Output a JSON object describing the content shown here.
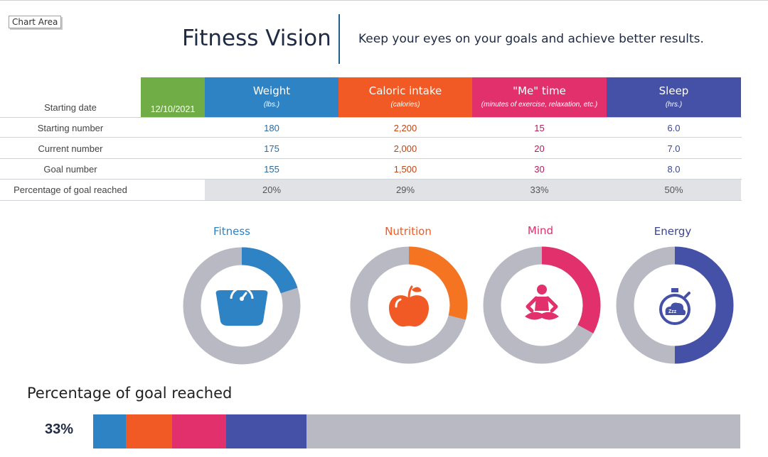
{
  "chart_area_label": "Chart Area",
  "title": "Fitness Vision",
  "subtitle": "Keep your eyes on your goals and achieve better results.",
  "table": {
    "starting_date_label": "Starting date",
    "starting_date": "12/10/2021",
    "columns": [
      {
        "name": "Weight",
        "unit": "(lbs.)",
        "color": "#2e83c4"
      },
      {
        "name": "Caloric intake",
        "unit": "(calories)",
        "color": "#f15a24"
      },
      {
        "name": "\"Me\" time",
        "unit": "(minutes of exercise, relaxation, etc.)",
        "color": "#e1306c"
      },
      {
        "name": "Sleep",
        "unit": "(hrs.)",
        "color": "#4451a6"
      }
    ],
    "rows": [
      {
        "label": "Starting number",
        "values": [
          "180",
          "2,200",
          "15",
          "6.0"
        ]
      },
      {
        "label": "Current number",
        "values": [
          "175",
          "2,000",
          "20",
          "7.0"
        ]
      },
      {
        "label": "Goal number",
        "values": [
          "155",
          "1,500",
          "30",
          "8.0"
        ]
      },
      {
        "label": "Percentage of goal reached",
        "values": [
          "20%",
          "29%",
          "33%",
          "50%"
        ]
      }
    ]
  },
  "donuts": [
    {
      "title": "Fitness",
      "fraction": 0.2,
      "color": "#2e83c4",
      "icon": "scale-icon"
    },
    {
      "title": "Nutrition",
      "fraction": 0.29,
      "color": "#f47421",
      "icon": "apple-icon"
    },
    {
      "title": "Mind",
      "fraction": 0.33,
      "color": "#e1306c",
      "icon": "meditation-icon"
    },
    {
      "title": "Energy",
      "fraction": 0.5,
      "color": "#4451a6",
      "icon": "stopwatch-sleep-icon"
    }
  ],
  "donut_track_color": "#b8b9c3",
  "goal_bar": {
    "heading": "Percentage of goal reached",
    "value_label": "33%",
    "segments": [
      {
        "name": "Fitness",
        "fraction": 0.05,
        "color": "#2e83c4"
      },
      {
        "name": "Nutrition",
        "fraction": 0.072,
        "color": "#f15a24"
      },
      {
        "name": "Mind",
        "fraction": 0.083,
        "color": "#e1306c"
      },
      {
        "name": "Energy",
        "fraction": 0.125,
        "color": "#4451a6"
      }
    ]
  }
}
